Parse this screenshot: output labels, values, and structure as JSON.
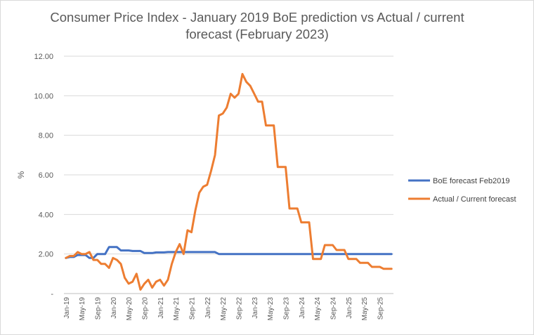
{
  "chart_data": {
    "type": "line",
    "title_line1": "Consumer  Price Index - January 2019 BoE prediction vs Actual / current",
    "title_line2": "forecast (February 2023)",
    "xlabel": "",
    "ylabel": "%",
    "ylim": [
      0,
      12
    ],
    "yticks": [
      {
        "value": 0,
        "label": "-"
      },
      {
        "value": 2,
        "label": "2.00"
      },
      {
        "value": 4,
        "label": "4.00"
      },
      {
        "value": 6,
        "label": "6.00"
      },
      {
        "value": 8,
        "label": "8.00"
      },
      {
        "value": 10,
        "label": "10.00"
      },
      {
        "value": 12,
        "label": "12.00"
      }
    ],
    "grid": "horizontal",
    "legend_position": "right",
    "x_start": "Jan-19",
    "x_tick_labels": [
      "Jan-19",
      "May-19",
      "Sep-19",
      "Jan-20",
      "May-20",
      "Sep-20",
      "Jan-21",
      "May-21",
      "Sep-21",
      "Jan-22",
      "May-22",
      "Sep-22",
      "Jan-23",
      "May-23",
      "Sep-23",
      "Jan-24",
      "May-24",
      "Sep-24",
      "Jan-25",
      "May-25",
      "Sep-25"
    ],
    "series": [
      {
        "name": "BoE forecast Feb2019",
        "color": "#4472c4",
        "values": [
          1.8,
          1.85,
          1.85,
          1.95,
          1.95,
          1.95,
          1.8,
          1.8,
          2.0,
          2.0,
          2.0,
          2.35,
          2.35,
          2.35,
          2.18,
          2.18,
          2.18,
          2.15,
          2.15,
          2.15,
          2.05,
          2.05,
          2.05,
          2.08,
          2.08,
          2.08,
          2.1,
          2.1,
          2.1,
          2.1,
          2.1,
          2.1,
          2.1,
          2.1,
          2.1,
          2.1,
          2.1,
          2.1,
          2.1,
          2.0,
          2.0,
          2.0,
          2.0,
          2.0,
          2.0,
          2.0,
          2.0,
          2.0,
          2.0,
          2.0,
          2.0,
          2.0,
          2.0,
          2.0,
          2.0,
          2.0,
          2.0,
          2.0,
          2.0,
          2.0,
          2.0,
          2.0,
          2.0,
          2.0,
          2.0,
          2.0,
          2.0,
          2.0,
          2.0,
          2.0,
          2.0,
          2.0,
          2.0,
          2.0,
          2.0,
          2.0,
          2.0,
          2.0,
          2.0,
          2.0,
          2.0,
          2.0,
          2.0,
          2.0
        ]
      },
      {
        "name": "Actual / Current forecast",
        "color": "#ed7d31",
        "values": [
          1.8,
          1.9,
          1.9,
          2.1,
          2.0,
          2.0,
          2.1,
          1.7,
          1.7,
          1.5,
          1.5,
          1.3,
          1.8,
          1.7,
          1.5,
          0.8,
          0.5,
          0.6,
          1.0,
          0.2,
          0.5,
          0.7,
          0.3,
          0.6,
          0.7,
          0.4,
          0.7,
          1.5,
          2.1,
          2.5,
          2.0,
          3.2,
          3.1,
          4.2,
          5.1,
          5.4,
          5.5,
          6.2,
          7.0,
          9.0,
          9.1,
          9.4,
          10.1,
          9.9,
          10.1,
          11.1,
          10.7,
          10.5,
          10.1,
          9.7,
          9.7,
          8.5,
          8.5,
          8.5,
          6.4,
          6.4,
          6.4,
          4.3,
          4.3,
          4.3,
          3.6,
          3.6,
          3.6,
          1.75,
          1.75,
          1.75,
          2.45,
          2.45,
          2.45,
          2.2,
          2.2,
          2.2,
          1.75,
          1.75,
          1.75,
          1.55,
          1.55,
          1.55,
          1.35,
          1.35,
          1.35,
          1.25,
          1.25,
          1.25
        ]
      }
    ]
  }
}
